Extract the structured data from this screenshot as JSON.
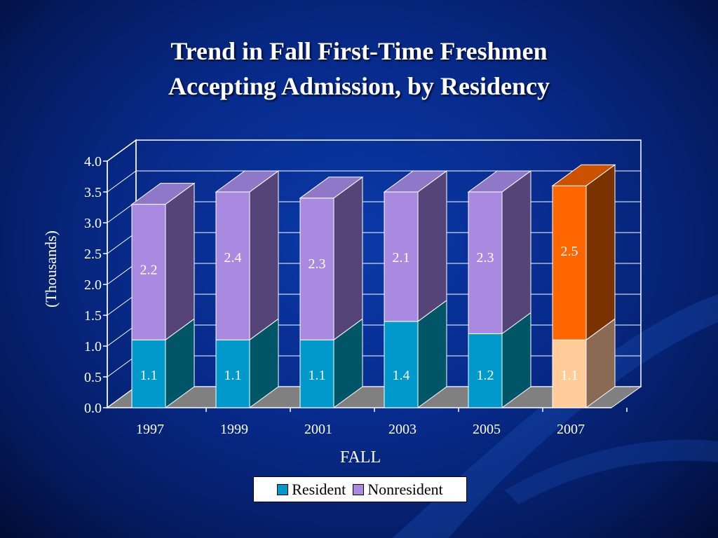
{
  "title": {
    "line1": "Trend in Fall First-Time Freshmen",
    "line2": "Accepting Admission, by Residency"
  },
  "chart_data": {
    "type": "bar",
    "stacked": true,
    "three_d": true,
    "categories": [
      "1997",
      "1999",
      "2001",
      "2003",
      "2005",
      "2007"
    ],
    "series": [
      {
        "name": "Resident",
        "values": [
          1.1,
          1.1,
          1.1,
          1.4,
          1.2,
          1.1
        ],
        "labels": [
          "1.1",
          "1.1",
          "1.1",
          "1.4",
          "1.2",
          "1.1"
        ]
      },
      {
        "name": "Nonresident",
        "values": [
          2.2,
          2.4,
          2.3,
          2.1,
          2.3,
          2.5
        ],
        "labels": [
          "2.2",
          "2.4",
          "2.3",
          "2.1",
          "2.3",
          "2.5"
        ]
      }
    ],
    "xlabel": "FALL",
    "ylabel": "(Thousands)",
    "ylim": [
      0,
      4
    ],
    "yticks": [
      "0.0",
      "0.5",
      "1.0",
      "1.5",
      "2.0",
      "2.5",
      "3.0",
      "3.5",
      "4.0"
    ],
    "grid": true,
    "legend_position": "bottom-center",
    "highlight_category": "2007"
  },
  "colors": {
    "resident": "#0099cc",
    "resident_side": "#005566",
    "nonresident": "#a98ae0",
    "nonresident_top": "#8f78c8",
    "nonresident_side": "#554477",
    "highlight_resident": "#ffcc99",
    "highlight_resident_side": "#8a6a55",
    "highlight_nonresident": "#ff6600",
    "highlight_nonresident_top": "#cc5200",
    "highlight_nonresident_side": "#7a3300",
    "floor": "#808080",
    "background": "#072a8a"
  }
}
